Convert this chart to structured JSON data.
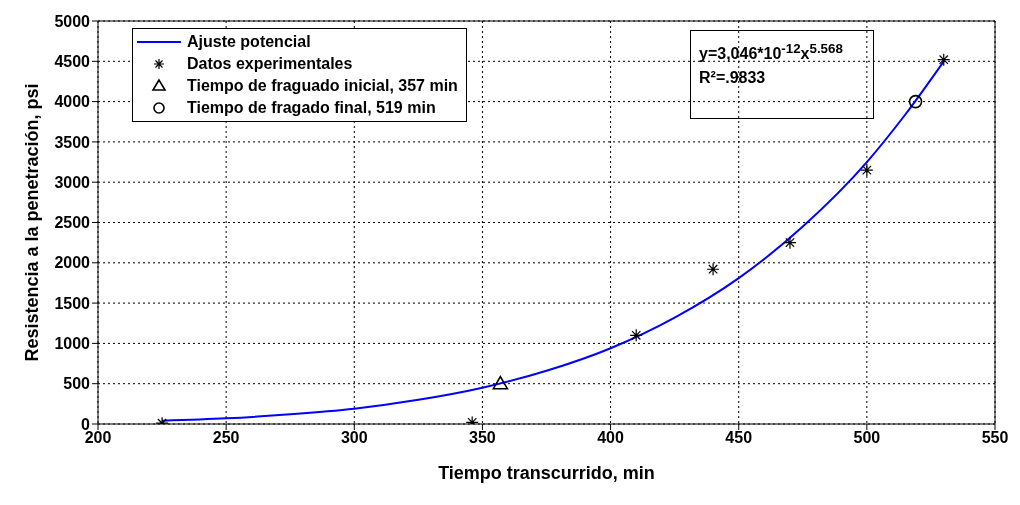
{
  "chart_data": {
    "type": "scatter",
    "xlabel": "Tiempo transcurrido, min",
    "ylabel": "Resistencia a la penetración, psi",
    "xlim": [
      200,
      550
    ],
    "xticks": [
      200,
      250,
      300,
      350,
      400,
      450,
      500,
      550
    ],
    "ylim": [
      0,
      5000
    ],
    "yticks": [
      0,
      500,
      1000,
      1500,
      2000,
      2500,
      3000,
      3500,
      4000,
      4500,
      5000
    ],
    "grid": true,
    "legend": "top left",
    "series": [
      {
        "name": "Ajuste potencial",
        "type": "line",
        "color": "#0000ff",
        "marker": "none",
        "x": [
          225,
          250,
          275,
          300,
          325,
          350,
          375,
          400,
          425,
          450,
          475,
          500,
          515,
          530
        ],
        "values": [
          40,
          70,
          120,
          190,
          300,
          450,
          660,
          940,
          1320,
          1810,
          2450,
          3250,
          3840,
          4500
        ]
      },
      {
        "name": "Datos experimentales",
        "color": "#000000",
        "marker": "cross",
        "x": [
          225,
          346,
          410,
          440,
          470,
          500,
          530
        ],
        "values": [
          10,
          20,
          1100,
          1920,
          2250,
          3150,
          4520
        ]
      },
      {
        "name": "Tiempo de fraguado inicial, 357 min",
        "color": "#000000",
        "marker": "triangle",
        "x": [
          357
        ],
        "values": [
          500
        ]
      },
      {
        "name": "Tiempo de fragado final, 519 min",
        "color": "#000000",
        "marker": "circle",
        "x": [
          519
        ],
        "values": [
          4000
        ]
      }
    ],
    "annotations": [
      "y=3,046*10$^{-12}$x$^{5.568}$",
      "R²=.9833"
    ]
  }
}
